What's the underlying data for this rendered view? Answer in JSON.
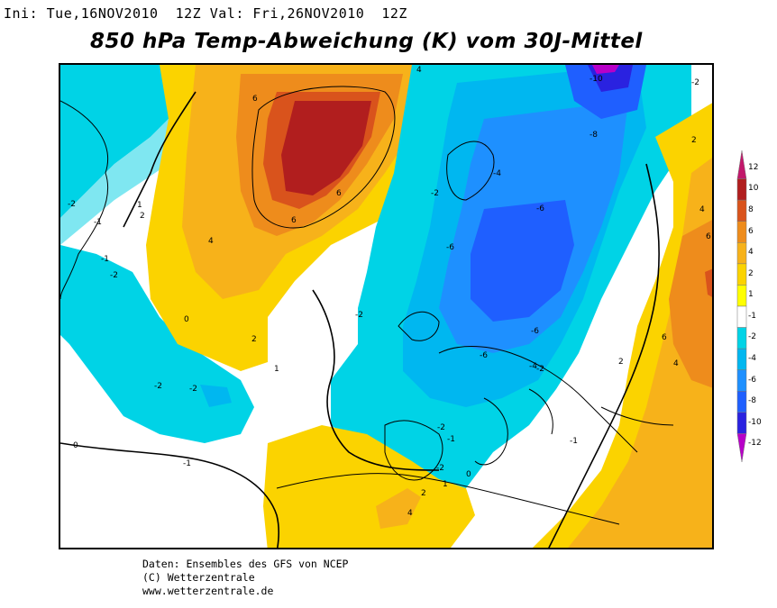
{
  "header": {
    "init_valid": "Ini: Tue,16NOV2010  12Z Val: Fri,26NOV2010  12Z",
    "title": "850 hPa Temp-Abweichung (K) vom 30J-Mittel"
  },
  "credits": {
    "line1": "Daten: Ensembles des GFS von NCEP",
    "line2": "(C) Wetterzentrale",
    "line3": "www.wetterzentrale.de"
  },
  "colorbar": {
    "labels": [
      "12",
      "10",
      "8",
      "6",
      "4",
      "2",
      "1",
      "-1",
      "-2",
      "-4",
      "-6",
      "-8",
      "-10",
      "-12"
    ],
    "colors": [
      "#c2186b",
      "#b11e1e",
      "#d9531c",
      "#ee8c1c",
      "#f7b21a",
      "#fbd300",
      "#ffff00",
      "#ffffff",
      "#00d3e6",
      "#00b7f0",
      "#1e90ff",
      "#1f5fff",
      "#2a22e0",
      "#b800c8"
    ]
  },
  "contour_labels": [
    {
      "text": "4"
    },
    {
      "text": "6"
    },
    {
      "text": "6"
    },
    {
      "text": "6"
    },
    {
      "text": "4"
    },
    {
      "text": "2"
    },
    {
      "text": "2"
    },
    {
      "text": "0"
    },
    {
      "text": "-2"
    },
    {
      "text": "-2"
    },
    {
      "text": "-2"
    },
    {
      "text": "-2"
    },
    {
      "text": "-1"
    },
    {
      "text": "-1"
    },
    {
      "text": "-1"
    },
    {
      "text": "1"
    },
    {
      "text": "1"
    },
    {
      "text": "0"
    },
    {
      "text": "-10"
    },
    {
      "text": "-8"
    },
    {
      "text": "-6"
    },
    {
      "text": "-6"
    },
    {
      "text": "-6"
    },
    {
      "text": "-4"
    },
    {
      "text": "-4"
    },
    {
      "text": "-2"
    },
    {
      "text": "-2"
    },
    {
      "text": "-2"
    },
    {
      "text": "-1"
    },
    {
      "text": "-1"
    },
    {
      "text": "-2"
    },
    {
      "text": "2"
    },
    {
      "text": "4"
    },
    {
      "text": "6"
    },
    {
      "text": "6"
    },
    {
      "text": "4"
    },
    {
      "text": "2"
    },
    {
      "text": "4"
    },
    {
      "text": "2"
    },
    {
      "text": "1"
    },
    {
      "text": "0"
    },
    {
      "text": "-6"
    },
    {
      "text": "-2"
    },
    {
      "text": "-2"
    }
  ]
}
